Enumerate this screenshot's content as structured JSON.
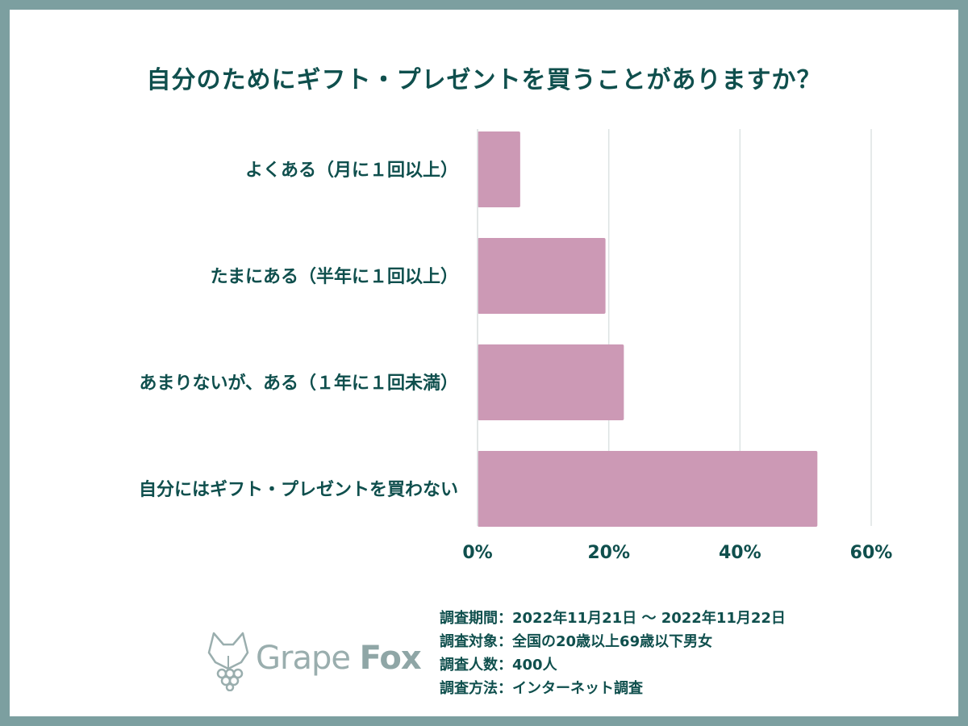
{
  "title": "自分のためにギフト・プレゼントを買うことがありますか？",
  "chart_data": {
    "type": "bar",
    "orientation": "horizontal",
    "categories": [
      "よくある（月に１回以上）",
      "たまにある（半年に１回以上）",
      "あまりないが、ある（１年に１回未満）",
      "自分にはギフト・プレゼントを買わない"
    ],
    "values": [
      6.5,
      19.5,
      22.3,
      51.8
    ],
    "xlim": [
      0,
      60
    ],
    "xticks": [
      "0%",
      "20%",
      "40%",
      "60%"
    ],
    "grid": true,
    "bar_color": "#cc99b5"
  },
  "survey": {
    "period": "調査期間：2022年11月21日 〜 2022年11月22日",
    "target": "調査対象：全国の20歳以上69歳以下男女",
    "count": "調査人数：400人",
    "method": "調査方法：インターネット調査"
  },
  "logo": {
    "word1": "Grape",
    "word2": "Fox"
  }
}
